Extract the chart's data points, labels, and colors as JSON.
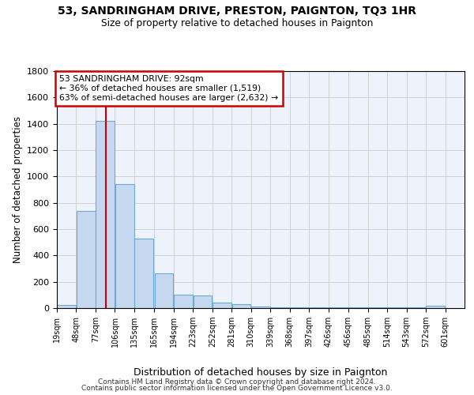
{
  "title1": "53, SANDRINGHAM DRIVE, PRESTON, PAIGNTON, TQ3 1HR",
  "title2": "Size of property relative to detached houses in Paignton",
  "xlabel": "Distribution of detached houses by size in Paignton",
  "ylabel": "Number of detached properties",
  "bin_labels": [
    "19sqm",
    "48sqm",
    "77sqm",
    "106sqm",
    "135sqm",
    "165sqm",
    "194sqm",
    "223sqm",
    "252sqm",
    "281sqm",
    "310sqm",
    "339sqm",
    "368sqm",
    "397sqm",
    "426sqm",
    "456sqm",
    "485sqm",
    "514sqm",
    "543sqm",
    "572sqm",
    "601sqm"
  ],
  "bin_edges": [
    19,
    48,
    77,
    106,
    135,
    165,
    194,
    223,
    252,
    281,
    310,
    339,
    368,
    397,
    426,
    456,
    485,
    514,
    543,
    572,
    601
  ],
  "bar_heights": [
    25,
    740,
    1420,
    940,
    530,
    265,
    105,
    95,
    40,
    30,
    15,
    5,
    5,
    5,
    5,
    5,
    5,
    5,
    5,
    20
  ],
  "bar_color": "#c5d8f0",
  "bar_edge_color": "#6aaad4",
  "grid_color": "#cccccc",
  "property_size": 92,
  "annotation_line1": "53 SANDRINGHAM DRIVE: 92sqm",
  "annotation_line2": "← 36% of detached houses are smaller (1,519)",
  "annotation_line3": "63% of semi-detached houses are larger (2,632) →",
  "annotation_box_color": "#ffffff",
  "annotation_border_color": "#cc0000",
  "vline_color": "#cc0000",
  "footer1": "Contains HM Land Registry data © Crown copyright and database right 2024.",
  "footer2": "Contains public sector information licensed under the Open Government Licence v3.0.",
  "ylim": [
    0,
    1800
  ],
  "background_color": "#ffffff",
  "axes_bg_color": "#eef2fa"
}
